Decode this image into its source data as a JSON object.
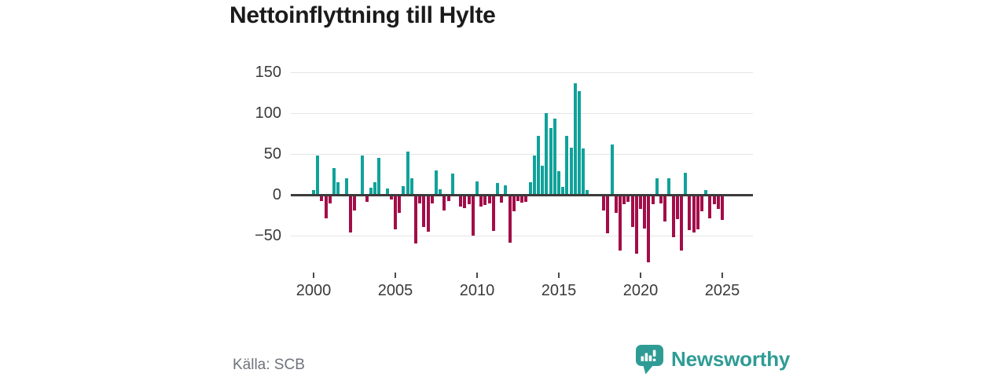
{
  "title": "Nettoinflyttning till Hylte",
  "source": "Källa: SCB",
  "brand": {
    "name": "Newsworthy",
    "color": "#2e9c95"
  },
  "chart_data": {
    "type": "bar",
    "title": "Nettoinflyttning till Hylte",
    "frequency": "quarterly",
    "start_period": "2000-Q1",
    "end_period": "2025-Q1",
    "values": [
      6,
      48,
      -7,
      -28,
      -10,
      33,
      15,
      0,
      20,
      -45,
      -18,
      0,
      48,
      -8,
      9,
      15,
      45,
      0,
      8,
      -5,
      -41,
      -21,
      11,
      53,
      20,
      -59,
      -10,
      -38,
      -44,
      -10,
      30,
      7,
      -18,
      -7,
      26,
      0,
      -13,
      -15,
      -11,
      -49,
      16,
      -13,
      -12,
      -10,
      -43,
      14,
      -9,
      12,
      -58,
      -19,
      -7,
      -9,
      -8,
      15,
      48,
      72,
      36,
      100,
      82,
      93,
      29,
      10,
      72,
      58,
      137,
      127,
      57,
      6,
      0,
      0,
      0,
      -18,
      -46,
      62,
      -21,
      -67,
      -11,
      -8,
      -38,
      -71,
      -16,
      -40,
      -82,
      -11,
      20,
      -10,
      -32,
      20,
      -51,
      -29,
      -67,
      27,
      -42,
      -45,
      -41,
      -19,
      6,
      -28,
      -11,
      -16,
      -30
    ],
    "y_ticks": [
      150,
      100,
      50,
      0,
      -50
    ],
    "y_tick_labels": [
      "150",
      "100",
      "50",
      "0",
      "−50"
    ],
    "x_tick_labels": [
      "2000",
      "2005",
      "2010",
      "2015",
      "2020",
      "2025"
    ],
    "x_tick_quarter_indices": [
      0,
      20,
      40,
      60,
      80,
      100
    ],
    "ylim": [
      -90,
      160
    ],
    "grid": true,
    "legend": false,
    "positive_color": "#10a29a",
    "negative_color": "#a30d49"
  }
}
